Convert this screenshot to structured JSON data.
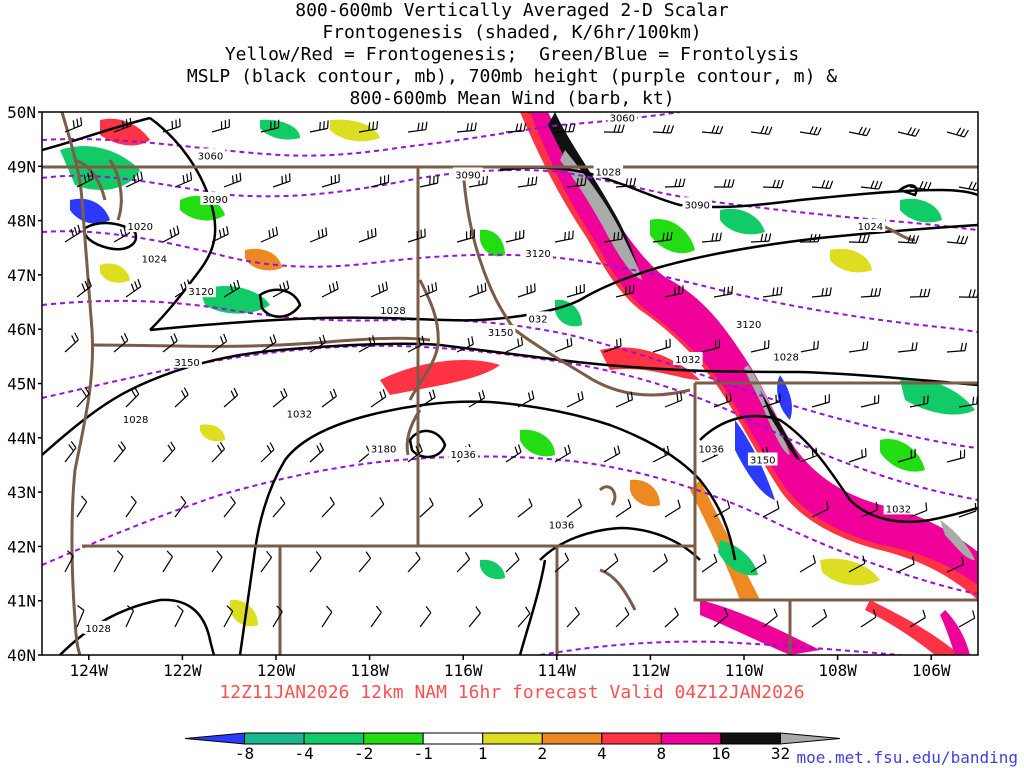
{
  "title_lines": [
    "800-600mb Vertically Averaged 2-D Scalar",
    "Frontogenesis (shaded, K/6hr/100km)",
    "Yellow/Red = Frontogenesis;  Green/Blue = Frontolysis",
    "MSLP (black contour, mb), 700mb height (purple contour, m) &",
    "800-600mb Mean Wind (barb, kt)"
  ],
  "forecast_caption": "12Z11JAN2026 12km NAM 16hr forecast Valid 04Z12JAN2026",
  "credit": "moe.met.fsu.edu/banding",
  "map": {
    "lon_range": [
      -125,
      -105
    ],
    "lat_range": [
      40,
      50
    ],
    "lat_labels": [
      "40N",
      "41N",
      "42N",
      "43N",
      "44N",
      "45N",
      "46N",
      "47N",
      "48N",
      "49N",
      "50N"
    ],
    "lon_labels": [
      "124W",
      "122W",
      "120W",
      "118W",
      "116W",
      "114W",
      "112W",
      "110W",
      "108W",
      "106W"
    ],
    "lon_values": [
      -124,
      -122,
      -120,
      -118,
      -116,
      -114,
      -112,
      -110,
      -108,
      -106
    ],
    "colors": {
      "mslp": "#000000",
      "height": "#9a10d8",
      "border": "#7a5c48",
      "barb": "#000000"
    },
    "mslp_labels": [
      {
        "text": "1020",
        "lon": -122.9,
        "lat": 47.9
      },
      {
        "text": "1024",
        "lon": -122.6,
        "lat": 47.3
      },
      {
        "text": "1028",
        "lon": -117.5,
        "lat": 46.35
      },
      {
        "text": "1028",
        "lon": -112.9,
        "lat": 48.9
      },
      {
        "text": "1024",
        "lon": -107.3,
        "lat": 47.9
      },
      {
        "text": "1032",
        "lon": -111.2,
        "lat": 45.45
      },
      {
        "text": "1028",
        "lon": -109.1,
        "lat": 45.5
      },
      {
        "text": "1028",
        "lon": -123.0,
        "lat": 44.35
      },
      {
        "text": "1032",
        "lon": -119.5,
        "lat": 44.45
      },
      {
        "text": "1036",
        "lon": -116.0,
        "lat": 43.7
      },
      {
        "text": "1036",
        "lon": -110.7,
        "lat": 43.8
      },
      {
        "text": "1036",
        "lon": -113.9,
        "lat": 42.4
      },
      {
        "text": "1032",
        "lon": -106.7,
        "lat": 42.7
      },
      {
        "text": "1028",
        "lon": -123.8,
        "lat": 40.5
      }
    ],
    "height_labels": [
      {
        "text": "3060",
        "lon": -121.4,
        "lat": 49.2
      },
      {
        "text": "3090",
        "lon": -121.3,
        "lat": 48.4
      },
      {
        "text": "3090",
        "lon": -115.9,
        "lat": 48.85
      },
      {
        "text": "3090",
        "lon": -111.0,
        "lat": 48.3
      },
      {
        "text": "3060",
        "lon": -112.6,
        "lat": 49.9
      },
      {
        "text": "3120",
        "lon": -121.6,
        "lat": 46.7
      },
      {
        "text": "3120",
        "lon": -114.4,
        "lat": 47.4
      },
      {
        "text": "3120",
        "lon": -109.9,
        "lat": 46.1
      },
      {
        "text": "3150",
        "lon": -121.9,
        "lat": 45.4
      },
      {
        "text": "3150",
        "lon": -115.2,
        "lat": 45.95
      },
      {
        "text": "3150",
        "lon": -109.6,
        "lat": 43.6
      },
      {
        "text": "3180",
        "lon": -117.7,
        "lat": 43.8
      },
      {
        "text": "032",
        "lon": -114.4,
        "lat": 46.2
      }
    ]
  },
  "colorbar": {
    "labels": [
      "-8",
      "-4",
      "-2",
      "-1",
      "1",
      "2",
      "4",
      "8",
      "16",
      "32"
    ],
    "colors": [
      "#2a3bff",
      "#19b98f",
      "#11cc66",
      "#22dd11",
      "#ffffff",
      "#dddd22",
      "#ee8822",
      "#ff3344",
      "#ee0099",
      "#111111",
      "#aaaaaa"
    ]
  }
}
